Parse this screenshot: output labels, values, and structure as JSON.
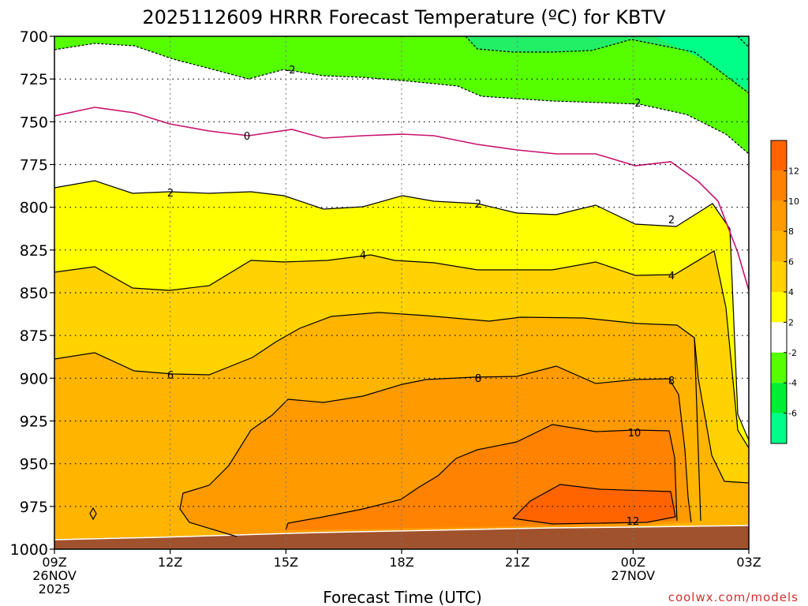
{
  "chart_data": {
    "type": "heatmap",
    "title": "2025112609 HRRR Forecast Temperature (ºC) for KBTV",
    "xlabel": "Forecast Time (UTC)",
    "ylabel": "",
    "credit": "coolwx.com/models",
    "y_axis": {
      "range": [
        1000,
        700
      ],
      "inverted": true,
      "ticks": [
        "700",
        "725",
        "750",
        "775",
        "800",
        "825",
        "850",
        "875",
        "900",
        "925",
        "950",
        "975",
        "1000"
      ]
    },
    "x_axis": {
      "ticks": [
        {
          "label": "09Z",
          "sub": [
            "26NOV",
            "2025"
          ]
        },
        {
          "label": "12Z",
          "sub": []
        },
        {
          "label": "15Z",
          "sub": []
        },
        {
          "label": "18Z",
          "sub": []
        },
        {
          "label": "21Z",
          "sub": []
        },
        {
          "label": "00Z",
          "sub": [
            "27NOV"
          ]
        },
        {
          "label": "03Z",
          "sub": []
        }
      ]
    },
    "colorbar": {
      "ticks": [
        "12",
        "10",
        "8",
        "6",
        "4",
        "2",
        "-2",
        "-4",
        "-6"
      ],
      "bands": [
        {
          "range": "12-14",
          "color": "#ff6400"
        },
        {
          "range": "10-12",
          "color": "#ff8200"
        },
        {
          "range": "8-10",
          "color": "#ff9a00"
        },
        {
          "range": "6-8",
          "color": "#ffb400"
        },
        {
          "range": "4-6",
          "color": "#ffd200"
        },
        {
          "range": "2-4",
          "color": "#ffff00"
        },
        {
          "range": "-2-2",
          "color": "#ffffff"
        },
        {
          "range": "-4--2",
          "color": "#55ff00"
        },
        {
          "range": "-6--4",
          "color": "#00ee33"
        },
        {
          "range": "<-6",
          "color": "#00ff88"
        }
      ]
    },
    "contour_labels": [
      {
        "text": "-2"
      },
      {
        "text": "-2"
      },
      {
        "text": "0"
      },
      {
        "text": "2"
      },
      {
        "text": "2"
      },
      {
        "text": "2"
      },
      {
        "text": "4"
      },
      {
        "text": "4"
      },
      {
        "text": "6"
      },
      {
        "text": "8"
      },
      {
        "text": "8"
      },
      {
        "text": "10"
      },
      {
        "text": "12"
      }
    ],
    "ground_color": "#a0522d",
    "zero_line_color": "#c8106e"
  }
}
